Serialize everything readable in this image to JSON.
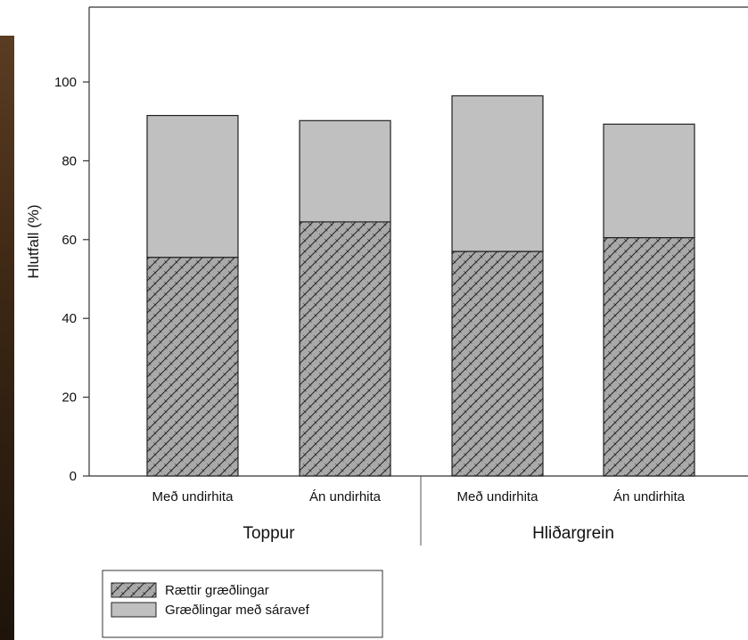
{
  "chart_data": {
    "type": "bar",
    "stacked": true,
    "ylabel": "Hlutfall (%)",
    "ylim": [
      0,
      115
    ],
    "yticks": [
      0,
      20,
      40,
      60,
      80,
      100
    ],
    "categories": [
      "Með undirhita",
      "Án undirhita",
      "Með undirhita",
      "Án undirhita"
    ],
    "groups": [
      {
        "label": "Toppur",
        "categories": [
          0,
          1
        ]
      },
      {
        "label": "Hliðargrein",
        "categories": [
          2,
          3
        ]
      }
    ],
    "series": [
      {
        "name": "Rættir græðlingar",
        "values": [
          55.5,
          64.5,
          57,
          60.5
        ],
        "color": "#a8a8a8",
        "pattern": "crosshatch"
      },
      {
        "name": "Græðlingar með sáravef",
        "values": [
          36,
          25.7,
          39.5,
          28.8
        ],
        "color": "#c0c0c0",
        "pattern": "solid"
      }
    ],
    "legend_position": "bottom-left",
    "grid": false
  }
}
